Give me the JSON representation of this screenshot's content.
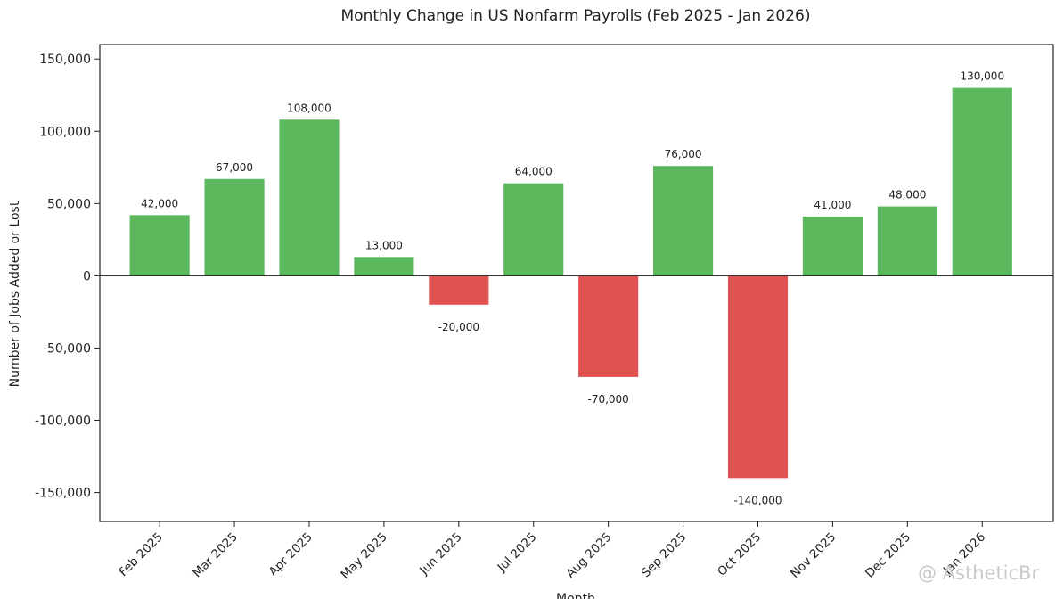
{
  "chart_data": {
    "type": "bar",
    "title": "Monthly Change in US Nonfarm Payrolls (Feb 2025 - Jan 2026)",
    "xlabel": "Month",
    "ylabel": "Number of Jobs Added or Lost",
    "categories": [
      "Feb 2025",
      "Mar 2025",
      "Apr 2025",
      "May 2025",
      "Jun 2025",
      "Jul 2025",
      "Aug 2025",
      "Sep 2025",
      "Oct 2025",
      "Nov 2025",
      "Dec 2025",
      "Jan 2026"
    ],
    "values": [
      42000,
      67000,
      108000,
      13000,
      -20000,
      64000,
      -70000,
      76000,
      -140000,
      41000,
      48000,
      130000
    ],
    "data_labels": [
      "42,000",
      "67,000",
      "108,000",
      "13,000",
      "-20,000",
      "64,000",
      "-70,000",
      "76,000",
      "-140,000",
      "41,000",
      "48,000",
      "130,000"
    ],
    "yticks": [
      150000,
      100000,
      50000,
      0,
      -50000,
      -100000,
      -150000
    ],
    "ytick_labels": [
      "150,000",
      "100,000",
      "50,000",
      "0",
      "-50,000",
      "-100,000",
      "-150,000"
    ],
    "ylim": [
      -170000,
      160000
    ],
    "grid": false,
    "colors": {
      "positive": "#5cb85c",
      "negative": "#e05252",
      "zero_line": "#333333"
    }
  },
  "watermark": "@ AstheticBr"
}
